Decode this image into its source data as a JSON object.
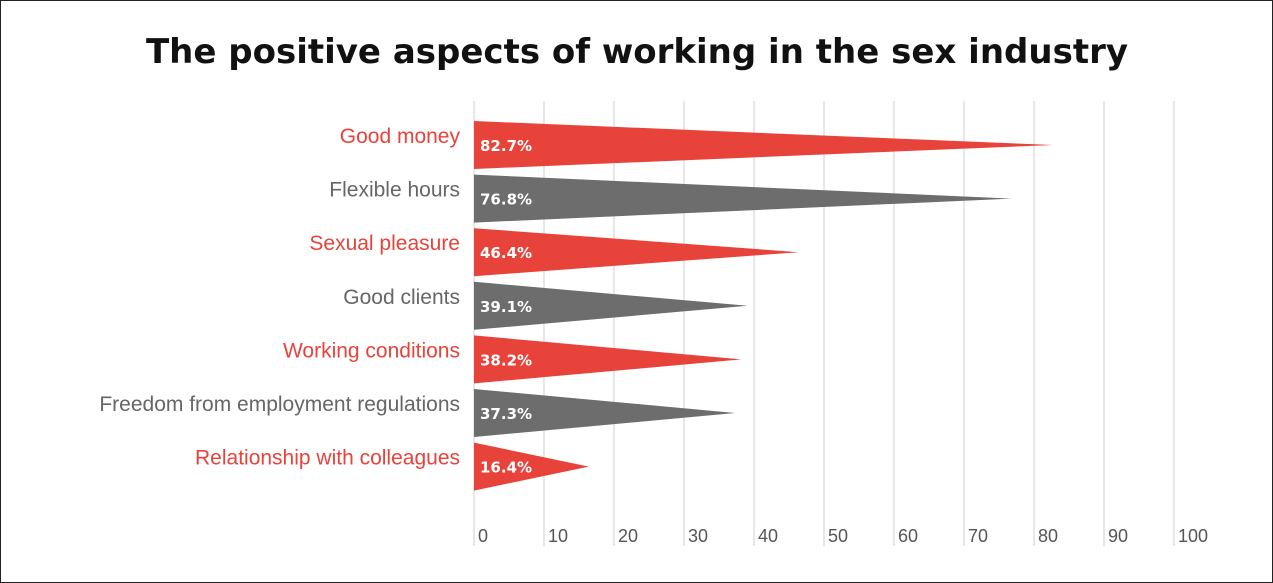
{
  "chart_data": {
    "type": "bar",
    "title": "The positive aspects of working in the sex industry",
    "categories": [
      "Good money",
      "Flexible hours",
      "Sexual pleasure",
      "Good clients",
      "Working conditions",
      "Freedom from employment regulations",
      "Relationship with colleagues"
    ],
    "values": [
      82.7,
      76.8,
      46.4,
      39.1,
      38.2,
      37.3,
      16.4
    ],
    "value_labels": [
      "82.7%",
      "76.8%",
      "46.4%",
      "39.1%",
      "38.2%",
      "37.3%",
      "16.4%"
    ],
    "xticks": [
      "0",
      "10",
      "20",
      "30",
      "40",
      "50",
      "60",
      "70",
      "80",
      "90",
      "100"
    ],
    "xlim": [
      0,
      100
    ],
    "orientation": "horizontal",
    "grid": true,
    "colors": [
      "#e8433a",
      "#6d6d6d"
    ]
  }
}
